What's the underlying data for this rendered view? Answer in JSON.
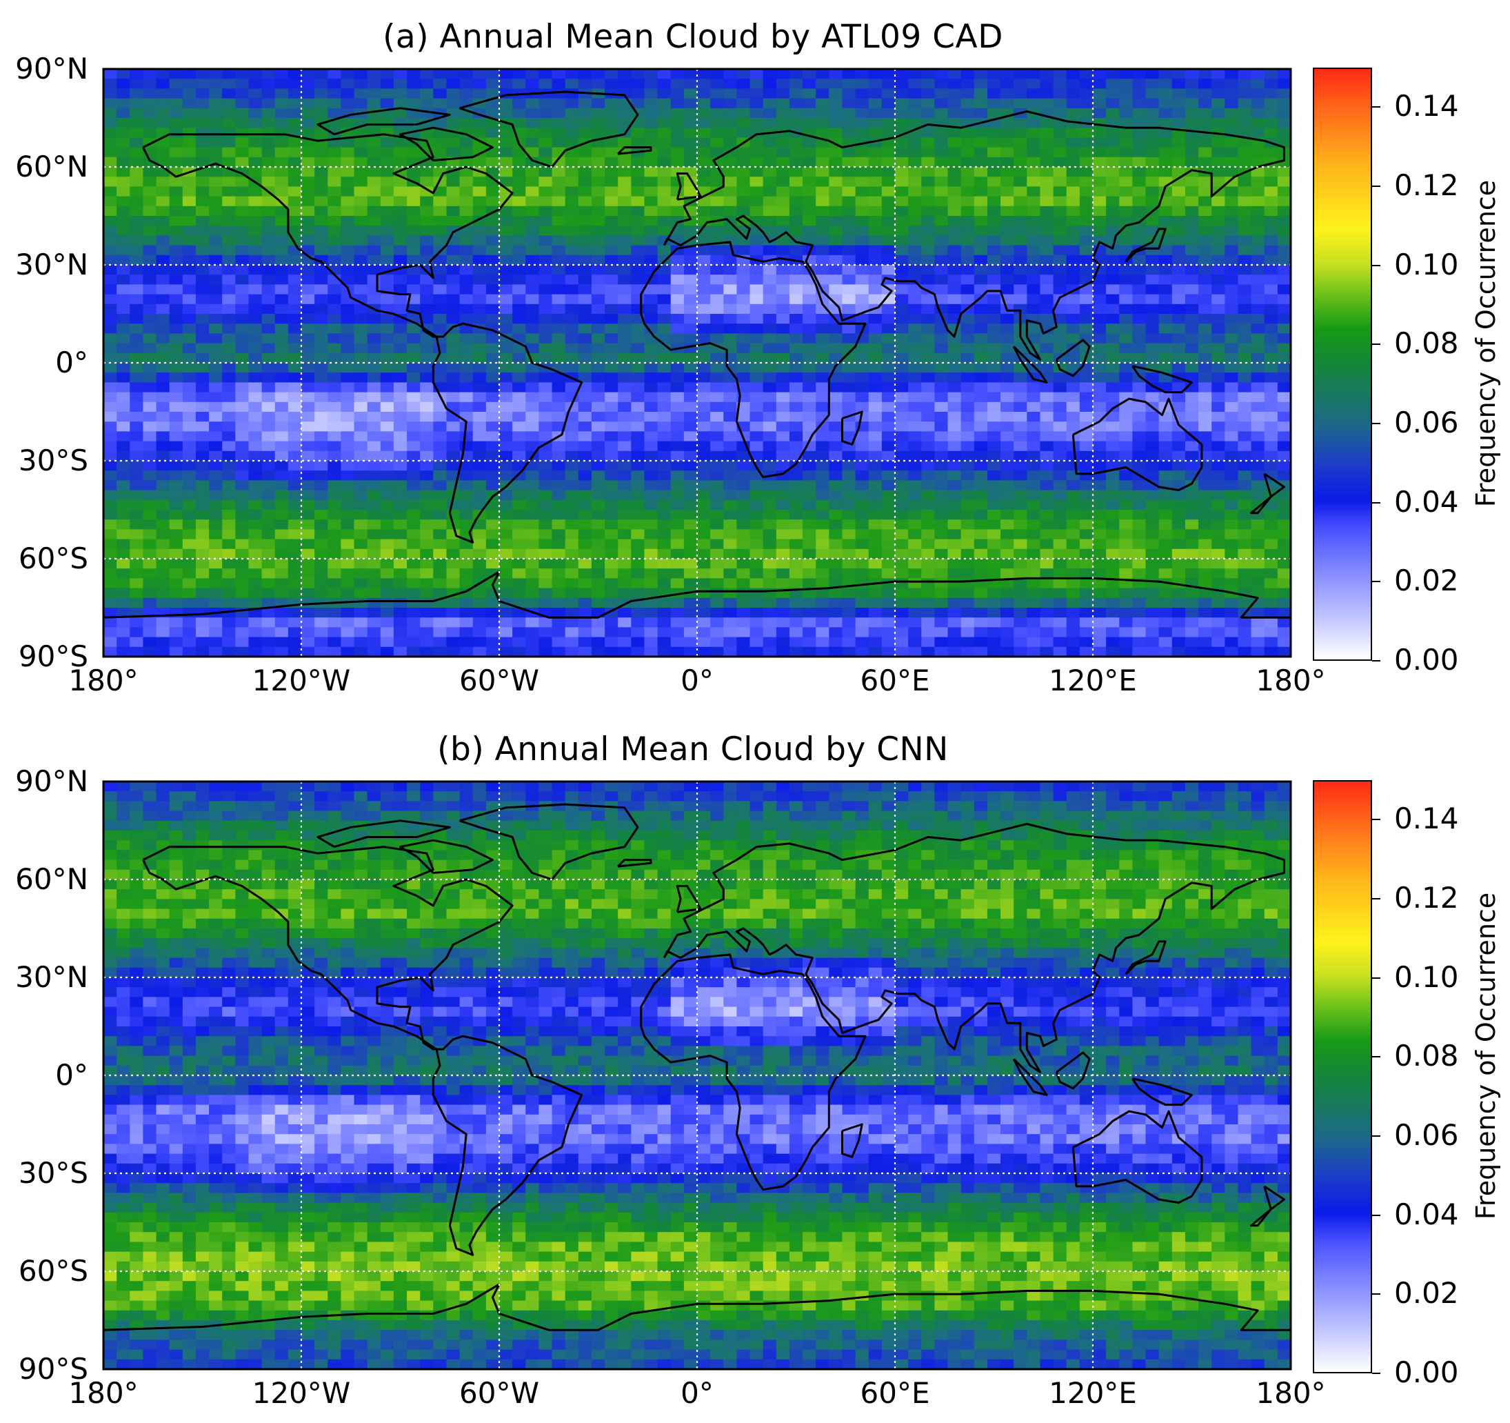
{
  "panels": [
    {
      "title": "(a) Annual Mean Cloud by ATL09 CAD",
      "lat_labels": [
        "90°N",
        "60°N",
        "30°N",
        "0°",
        "30°S",
        "60°S",
        "90°S"
      ],
      "lon_labels": [
        "180°",
        "120°W",
        "60°W",
        "0°",
        "60°E",
        "120°E",
        "180°"
      ],
      "colorbar": {
        "label": "Frequency of Occurrence",
        "ticks": [
          "0.00",
          "0.02",
          "0.04",
          "0.06",
          "0.08",
          "0.10",
          "0.12",
          "0.14"
        ]
      }
    },
    {
      "title": "(b) Annual Mean Cloud by CNN",
      "lat_labels": [
        "90°N",
        "60°N",
        "30°N",
        "0°",
        "30°S",
        "60°S",
        "90°S"
      ],
      "lon_labels": [
        "180°",
        "120°W",
        "60°W",
        "0°",
        "60°E",
        "120°E",
        "180°"
      ],
      "colorbar": {
        "label": "Frequency of Occurrence",
        "ticks": [
          "0.00",
          "0.02",
          "0.04",
          "0.06",
          "0.08",
          "0.10",
          "0.12",
          "0.14"
        ]
      }
    }
  ],
  "colorscale": {
    "range": [
      0.0,
      0.15
    ],
    "colors": [
      "#ffffff",
      "#4a52ff",
      "#0a1be8",
      "#14863a",
      "#fff21c",
      "#ff2a14"
    ]
  },
  "chart_data": [
    {
      "type": "heatmap",
      "title": "(a) Annual Mean Cloud by ATL09 CAD",
      "x_range": [
        -180,
        180
      ],
      "y_range": [
        -90,
        90
      ],
      "x_ticks": [
        -180,
        -120,
        -60,
        0,
        60,
        120,
        180
      ],
      "y_ticks": [
        90,
        60,
        30,
        0,
        -30,
        -60,
        -90
      ],
      "grid": true,
      "zlabel": "Frequency of Occurrence",
      "zlim": [
        0.0,
        0.15
      ],
      "zonal_profile": {
        "lat": [
          90,
          80,
          70,
          60,
          50,
          40,
          30,
          20,
          10,
          0,
          -10,
          -20,
          -30,
          -40,
          -50,
          -60,
          -70,
          -80,
          -90
        ],
        "value": [
          0.04,
          0.055,
          0.075,
          0.085,
          0.09,
          0.07,
          0.045,
          0.03,
          0.055,
          0.065,
          0.025,
          0.025,
          0.04,
          0.065,
          0.085,
          0.09,
          0.08,
          0.025,
          0.04
        ]
      }
    },
    {
      "type": "heatmap",
      "title": "(b) Annual Mean Cloud by CNN",
      "x_range": [
        -180,
        180
      ],
      "y_range": [
        -90,
        90
      ],
      "x_ticks": [
        -180,
        -120,
        -60,
        0,
        60,
        120,
        180
      ],
      "y_ticks": [
        90,
        60,
        30,
        0,
        -30,
        -60,
        -90
      ],
      "grid": true,
      "zlabel": "Frequency of Occurrence",
      "zlim": [
        0.0,
        0.15
      ],
      "zonal_profile": {
        "lat": [
          90,
          80,
          70,
          60,
          50,
          40,
          30,
          20,
          10,
          0,
          -10,
          -20,
          -30,
          -40,
          -50,
          -60,
          -70,
          -80,
          -90
        ],
        "value": [
          0.045,
          0.06,
          0.08,
          0.085,
          0.09,
          0.07,
          0.045,
          0.03,
          0.055,
          0.065,
          0.025,
          0.025,
          0.04,
          0.07,
          0.09,
          0.095,
          0.09,
          0.06,
          0.05
        ]
      }
    }
  ]
}
